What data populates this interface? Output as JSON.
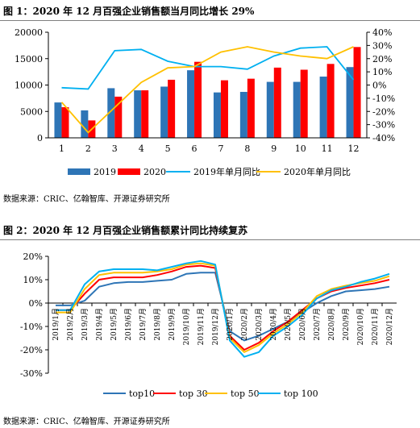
{
  "figure1": {
    "title": "图 1：2020 年 12 月百强企业销售额当月同比增长 29%",
    "source": "数据来源：CRIC、亿翰智库、开源证券研究所"
  },
  "figure2": {
    "title": "图 2：2020 年 12 月百强企业销售额累计同比持续复苏",
    "source": "数据来源：CRIC、亿翰智库、开源证券研究所"
  },
  "chart_data": [
    {
      "type": "bar",
      "title": "图 1：2020 年 12 月百强企业销售额当月同比增长 29%",
      "categories": [
        "1",
        "2",
        "3",
        "4",
        "5",
        "6",
        "7",
        "8",
        "9",
        "10",
        "11",
        "12"
      ],
      "y_left": {
        "ticks": [
          0,
          5000,
          10000,
          15000,
          20000
        ],
        "ylim": [
          0,
          20000
        ]
      },
      "y_right": {
        "ticks": [
          "40%",
          "30%",
          "20%",
          "10%",
          "0%",
          "-10%",
          "-20%",
          "-30%",
          "-40%"
        ],
        "ylim": [
          -0.4,
          0.4
        ]
      },
      "series": [
        {
          "name": "2019",
          "kind": "bar",
          "axis": "left",
          "color": "#2E75B6",
          "values": [
            6700,
            5200,
            9400,
            9000,
            9700,
            12800,
            8600,
            8700,
            10600,
            10600,
            11600,
            13400
          ]
        },
        {
          "name": "2020",
          "kind": "bar",
          "axis": "left",
          "color": "#FF0000",
          "values": [
            5800,
            3300,
            7800,
            9000,
            11000,
            14400,
            10900,
            11200,
            13300,
            12900,
            14000,
            17200
          ]
        },
        {
          "name": "2019年单月同比",
          "kind": "line",
          "axis": "right",
          "color": "#00B0F0",
          "values": [
            -0.02,
            -0.03,
            0.26,
            0.27,
            0.18,
            0.14,
            0.14,
            0.12,
            0.22,
            0.28,
            0.29,
            0.04
          ]
        },
        {
          "name": "2020年单月同比",
          "kind": "line",
          "axis": "right",
          "color": "#FFC000",
          "values": [
            -0.13,
            -0.36,
            -0.17,
            0.02,
            0.13,
            0.14,
            0.25,
            0.29,
            0.25,
            0.22,
            0.2,
            0.29
          ]
        }
      ],
      "legend": "bottom"
    },
    {
      "type": "line",
      "title": "图 2：2020 年 12 月百强企业销售额累计同比持续复苏",
      "categories": [
        "2019/1月",
        "2019/2月",
        "2019/3月",
        "2019/4月",
        "2019/5月",
        "2019/6月",
        "2019/7月",
        "2019/8月",
        "2019/9月",
        "2019/10月",
        "2019/11月",
        "2019/12月",
        "2020/1月",
        "2020/2月",
        "2020/3月",
        "2020/4月",
        "2020/5月",
        "2020/6月",
        "2020/7月",
        "2020/8月",
        "2020/9月",
        "2020/10月",
        "2020/11月",
        "2020/12月"
      ],
      "y": {
        "ticks": [
          "20%",
          "10%",
          "0%",
          "-10%",
          "-20%",
          "-30%"
        ],
        "ylim": [
          -0.3,
          0.2
        ]
      },
      "series": [
        {
          "name": "top10",
          "color": "#2E75B6",
          "values": [
            -0.01,
            -0.01,
            0.01,
            0.07,
            0.085,
            0.09,
            0.09,
            0.095,
            0.1,
            0.125,
            0.13,
            0.13,
            -0.12,
            -0.16,
            -0.14,
            -0.11,
            -0.08,
            -0.04,
            0.0,
            0.03,
            0.05,
            0.055,
            0.06,
            0.07
          ]
        },
        {
          "name": "top 30",
          "color": "#FF0000",
          "values": [
            -0.03,
            -0.03,
            0.04,
            0.1,
            0.11,
            0.11,
            0.11,
            0.12,
            0.135,
            0.155,
            0.16,
            0.15,
            -0.14,
            -0.2,
            -0.17,
            -0.12,
            -0.08,
            -0.03,
            0.02,
            0.05,
            0.065,
            0.075,
            0.085,
            0.1
          ]
        },
        {
          "name": "top 50",
          "color": "#FFC000",
          "values": [
            -0.04,
            -0.04,
            0.06,
            0.12,
            0.13,
            0.13,
            0.13,
            0.135,
            0.145,
            0.165,
            0.17,
            0.16,
            -0.15,
            -0.21,
            -0.18,
            -0.13,
            -0.09,
            -0.04,
            0.03,
            0.06,
            0.075,
            0.085,
            0.095,
            0.115
          ]
        },
        {
          "name": "top 100",
          "color": "#00B0F0",
          "values": [
            -0.03,
            -0.03,
            0.08,
            0.135,
            0.145,
            0.145,
            0.145,
            0.14,
            0.155,
            0.17,
            0.18,
            0.165,
            -0.16,
            -0.23,
            -0.21,
            -0.14,
            -0.1,
            -0.05,
            0.02,
            0.055,
            0.07,
            0.09,
            0.105,
            0.125
          ]
        }
      ],
      "legend": "bottom"
    }
  ]
}
